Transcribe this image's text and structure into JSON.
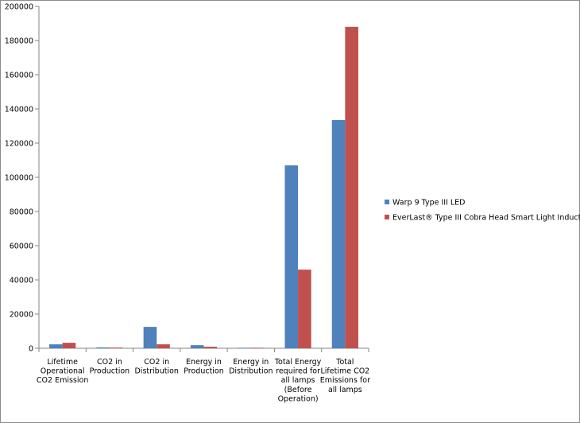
{
  "chart_data": {
    "type": "bar",
    "title": "",
    "xlabel": "",
    "ylabel": "",
    "ylim": [
      0,
      200000
    ],
    "yticks": [
      0,
      20000,
      40000,
      60000,
      80000,
      100000,
      120000,
      140000,
      160000,
      180000,
      200000
    ],
    "grid": false,
    "legend_position": "right",
    "categories": [
      [
        "Lifetime",
        "Operational",
        "CO2 Emission"
      ],
      [
        "CO2 in",
        "Production"
      ],
      [
        "CO2 in",
        "Distribution"
      ],
      [
        "Energy in",
        "Production"
      ],
      [
        "Energy in",
        "Distribution"
      ],
      [
        "Total Energy",
        "required for",
        "all lamps",
        "(Before",
        "Operation)"
      ],
      [
        "Total",
        "Lifetime CO2",
        "Emissions for",
        "all lamps"
      ]
    ],
    "series": [
      {
        "name": "Warp 9 Type III LED",
        "color": "#4f81bd",
        "values": [
          2300,
          500,
          12500,
          1800,
          300,
          107000,
          133500
        ]
      },
      {
        "name": "EverLast® Type III Cobra Head Smart Light Induction",
        "color": "#c0504d",
        "values": [
          3200,
          400,
          2300,
          900,
          300,
          46000,
          188000
        ]
      }
    ]
  }
}
